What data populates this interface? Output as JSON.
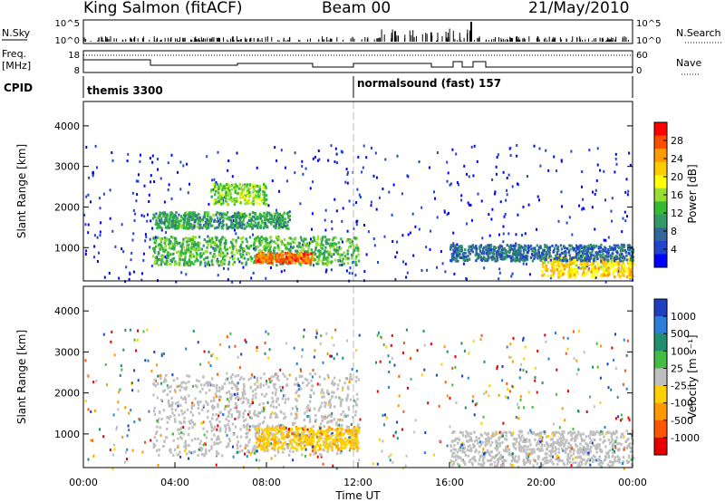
{
  "header": {
    "station": "King Salmon (fitACF)",
    "beam": "Beam 00",
    "date": "21/May/2010"
  },
  "top_panels": {
    "nsky_label": "N.Sky",
    "nsky_ticks": [
      "10^5",
      "10^0"
    ],
    "nsearch_label": "N.Search",
    "nsearch_ticks": [
      "10^5",
      "10^0"
    ],
    "freq_label": "Freq.",
    "freq_unit": "[MHz]",
    "freq_ticks": [
      "18",
      "8"
    ],
    "nave_label": "Nave",
    "nave_ticks": [
      "60",
      "0"
    ],
    "cpid_label": "CPID",
    "cpid_segments": [
      {
        "label": "themis 3300",
        "start_h": 0
      },
      {
        "label": "normalsound (fast) 157",
        "start_h": 12
      }
    ]
  },
  "colorbars": {
    "power": {
      "label": "Power [dB]",
      "ticks": [
        "28",
        "24",
        "20",
        "16",
        "12",
        "8",
        "4"
      ],
      "colors": [
        "#ff0000",
        "#ff4d00",
        "#ff9900",
        "#ffcc00",
        "#ffff00",
        "#99dd33",
        "#33bb33",
        "#339966",
        "#336699",
        "#2244cc",
        "#0000ff"
      ]
    },
    "velocity": {
      "label": "Velocity [m s⁻¹]",
      "ticks": [
        "1000",
        "500",
        "100",
        "25",
        "-25",
        "-100",
        "-500",
        "-1000"
      ],
      "colors": [
        "#1f3fbf",
        "#2a7fd8",
        "#1f8f6f",
        "#44bb44",
        "#bfbfbf",
        "#ffd000",
        "#ff9900",
        "#ff5500",
        "#e60000"
      ]
    }
  },
  "chart_data": [
    {
      "type": "heatmap",
      "name": "power",
      "ylabel": "Slant Range [km]",
      "yticks": [
        "4000",
        "3000",
        "2000",
        "1000"
      ],
      "ylim": [
        180,
        4600
      ],
      "xlim": [
        0,
        24
      ],
      "xticks": [
        "00:00",
        "04:00",
        "08:00",
        "12:00",
        "16:00",
        "20:00",
        "00:00"
      ],
      "value_label": "Power [dB]",
      "regions": [
        {
          "t0": 3.0,
          "t1": 12.0,
          "r0": 600,
          "r1": 1300,
          "value": 12
        },
        {
          "t0": 7.5,
          "t1": 10.0,
          "r0": 650,
          "r1": 900,
          "value": 26
        },
        {
          "t0": 3.0,
          "t1": 9.0,
          "r0": 1500,
          "r1": 1900,
          "value": 10
        },
        {
          "t0": 5.5,
          "t1": 8.0,
          "r0": 2100,
          "r1": 2600,
          "value": 14
        },
        {
          "t0": 20.0,
          "t1": 24.0,
          "r0": 300,
          "r1": 800,
          "value": 20
        },
        {
          "t0": 16.0,
          "t1": 24.0,
          "r0": 700,
          "r1": 1100,
          "value": 6
        }
      ]
    },
    {
      "type": "heatmap",
      "name": "velocity",
      "ylabel": "Slant Range [km]",
      "yticks": [
        "4000",
        "3000",
        "2000",
        "1000"
      ],
      "ylim": [
        180,
        4600
      ],
      "xlim": [
        0,
        24
      ],
      "xtitle": "Time UT",
      "xticks": [
        "00:00",
        "04:00",
        "08:00",
        "12:00",
        "16:00",
        "20:00",
        "00:00"
      ],
      "value_label": "Velocity [m s⁻¹]",
      "regions": [
        {
          "t0": 3.0,
          "t1": 12.0,
          "r0": 500,
          "r1": 2500,
          "value": 0
        },
        {
          "t0": 7.5,
          "t1": 12.0,
          "r0": 650,
          "r1": 1200,
          "value": -100
        },
        {
          "t0": 16.0,
          "t1": 24.0,
          "r0": 250,
          "r1": 1100,
          "value": 0
        }
      ]
    }
  ]
}
